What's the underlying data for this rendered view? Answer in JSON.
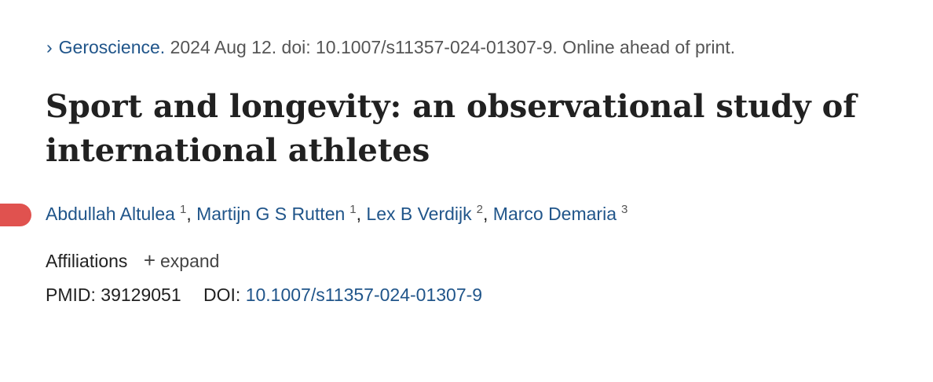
{
  "citation": {
    "journal": "Geroscience.",
    "details": "2024 Aug 12. doi: 10.1007/s11357-024-01307-9. Online ahead of print.",
    "chevron_icon": "chevron-right-icon"
  },
  "article": {
    "title": "Sport and longevity: an observational study of international athletes"
  },
  "authors": [
    {
      "name": "Abdullah Altulea",
      "affil": "1"
    },
    {
      "name": "Martijn G S Rutten",
      "affil": "1"
    },
    {
      "name": "Lex B Verdijk",
      "affil": "2"
    },
    {
      "name": "Marco Demaria",
      "affil": "3"
    }
  ],
  "affiliations": {
    "label": "Affiliations",
    "expand_label": "expand",
    "expand_icon": "plus-icon"
  },
  "ids": {
    "pmid_label": "PMID:",
    "pmid": "39129051",
    "doi_label": "DOI:",
    "doi": "10.1007/s11357-024-01307-9"
  },
  "colors": {
    "link": "#20558a",
    "marker": "#e0524f",
    "text": "#212121"
  }
}
